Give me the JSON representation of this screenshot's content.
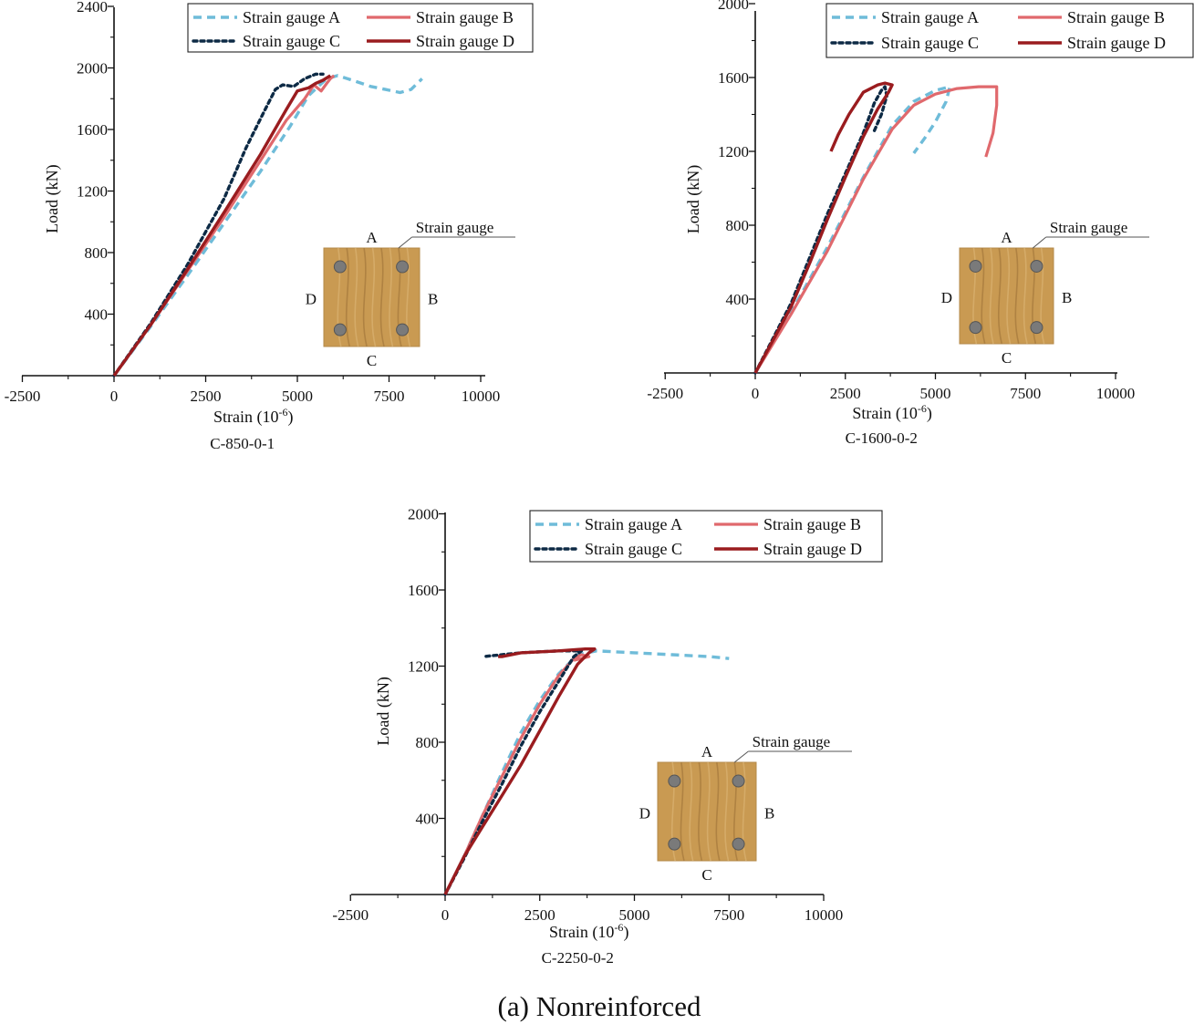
{
  "figure": {
    "caption": "(a) Nonreinforced",
    "colors": {
      "gauge_a": "#6fbcd9",
      "gauge_b": "#e0696d",
      "gauge_c": "#0d2a45",
      "gauge_d": "#9a1c1f",
      "specimen": "#c99a52",
      "bar": "#7a7a7a"
    },
    "inset": {
      "callout": "Strain gauge",
      "face_a": "A",
      "face_b": "B",
      "face_c": "C",
      "face_d": "D"
    }
  },
  "chart_data": [
    {
      "type": "line",
      "title": "C-850-0-1",
      "xlabel": "Strain (10",
      "xlabel_sup": "-6",
      "xlabel_end": ")",
      "ylabel": "Load (kN)",
      "xlim": [
        -2500,
        10000
      ],
      "ylim": [
        0,
        2400
      ],
      "xticks": [
        "-2500",
        "0",
        "2500",
        "5000",
        "7500",
        "10000"
      ],
      "xtick_values": [
        -2500,
        0,
        2500,
        5000,
        7500,
        10000
      ],
      "yticks": [
        "400",
        "800",
        "1200",
        "1600",
        "2000",
        "2400"
      ],
      "ytick_values": [
        400,
        800,
        1200,
        1600,
        2000,
        2400
      ],
      "series": [
        {
          "name": "Strain gauge A",
          "key": "gauge_a",
          "style": "dash",
          "points": [
            [
              0,
              0
            ],
            [
              1000,
              320
            ],
            [
              2000,
              650
            ],
            [
              3000,
              990
            ],
            [
              4000,
              1330
            ],
            [
              4800,
              1620
            ],
            [
              5300,
              1820
            ],
            [
              5800,
              1930
            ],
            [
              6100,
              1950
            ],
            [
              6500,
              1920
            ],
            [
              7000,
              1880
            ],
            [
              7400,
              1860
            ],
            [
              7800,
              1840
            ],
            [
              8100,
              1860
            ],
            [
              8400,
              1930
            ]
          ]
        },
        {
          "name": "Strain gauge B",
          "key": "gauge_b",
          "style": "solid",
          "points": [
            [
              0,
              0
            ],
            [
              1000,
              330
            ],
            [
              2000,
              680
            ],
            [
              3000,
              1030
            ],
            [
              4000,
              1400
            ],
            [
              4700,
              1660
            ],
            [
              5200,
              1800
            ],
            [
              5450,
              1890
            ],
            [
              5650,
              1850
            ],
            [
              5800,
              1900
            ],
            [
              5900,
              1930
            ],
            [
              6000,
              1950
            ]
          ]
        },
        {
          "name": "Strain gauge C",
          "key": "gauge_c",
          "style": "dot",
          "points": [
            [
              0,
              0
            ],
            [
              1000,
              340
            ],
            [
              2000,
              720
            ],
            [
              3000,
              1150
            ],
            [
              3600,
              1480
            ],
            [
              4100,
              1720
            ],
            [
              4400,
              1860
            ],
            [
              4600,
              1890
            ],
            [
              4900,
              1880
            ],
            [
              5200,
              1930
            ],
            [
              5500,
              1960
            ],
            [
              5700,
              1960
            ]
          ]
        },
        {
          "name": "Strain gauge D",
          "key": "gauge_d",
          "style": "solid",
          "points": [
            [
              0,
              0
            ],
            [
              1000,
              330
            ],
            [
              2000,
              690
            ],
            [
              3000,
              1060
            ],
            [
              4000,
              1440
            ],
            [
              4700,
              1730
            ],
            [
              5000,
              1850
            ],
            [
              5300,
              1870
            ],
            [
              5500,
              1900
            ],
            [
              5700,
              1920
            ],
            [
              5900,
              1950
            ]
          ]
        }
      ]
    },
    {
      "type": "line",
      "title": "C-1600-0-2",
      "xlabel": "Strain (10",
      "xlabel_sup": "-6",
      "xlabel_end": ")",
      "ylabel": "Load (kN)",
      "xlim": [
        -2500,
        10000
      ],
      "ylim": [
        0,
        2000
      ],
      "xticks": [
        "-2500",
        "0",
        "2500",
        "5000",
        "7500",
        "10000"
      ],
      "xtick_values": [
        -2500,
        0,
        2500,
        5000,
        7500,
        10000
      ],
      "yticks": [
        "400",
        "800",
        "1200",
        "1600",
        "2000"
      ],
      "ytick_values": [
        400,
        800,
        1200,
        1600,
        2000
      ],
      "series": [
        {
          "name": "Strain gauge A",
          "key": "gauge_a",
          "style": "dash",
          "points": [
            [
              0,
              0
            ],
            [
              1000,
              330
            ],
            [
              2000,
              680
            ],
            [
              3000,
              1060
            ],
            [
              3800,
              1340
            ],
            [
              4400,
              1470
            ],
            [
              5000,
              1530
            ],
            [
              5400,
              1550
            ],
            [
              5300,
              1470
            ],
            [
              5000,
              1360
            ],
            [
              4700,
              1270
            ],
            [
              4400,
              1190
            ]
          ]
        },
        {
          "name": "Strain gauge B",
          "key": "gauge_b",
          "style": "solid",
          "points": [
            [
              0,
              0
            ],
            [
              1000,
              320
            ],
            [
              2000,
              660
            ],
            [
              3000,
              1050
            ],
            [
              3800,
              1320
            ],
            [
              4400,
              1450
            ],
            [
              5000,
              1510
            ],
            [
              5600,
              1540
            ],
            [
              6200,
              1550
            ],
            [
              6700,
              1550
            ],
            [
              6700,
              1450
            ],
            [
              6600,
              1300
            ],
            [
              6400,
              1170
            ]
          ]
        },
        {
          "name": "Strain gauge C",
          "key": "gauge_c",
          "style": "dot",
          "points": [
            [
              0,
              0
            ],
            [
              500,
              190
            ],
            [
              1000,
              380
            ],
            [
              1500,
              620
            ],
            [
              2000,
              860
            ],
            [
              2500,
              1080
            ],
            [
              3000,
              1300
            ],
            [
              3300,
              1460
            ],
            [
              3500,
              1530
            ],
            [
              3600,
              1550
            ],
            [
              3650,
              1500
            ],
            [
              3500,
              1400
            ],
            [
              3300,
              1310
            ]
          ]
        },
        {
          "name": "Strain gauge D",
          "key": "gauge_d",
          "style": "solid",
          "points": [
            [
              0,
              0
            ],
            [
              500,
              180
            ],
            [
              1000,
              360
            ],
            [
              1500,
              590
            ],
            [
              2000,
              830
            ],
            [
              2500,
              1060
            ],
            [
              3000,
              1280
            ],
            [
              3400,
              1430
            ],
            [
              3700,
              1520
            ],
            [
              3800,
              1560
            ],
            [
              3600,
              1570
            ],
            [
              3400,
              1560
            ],
            [
              3000,
              1520
            ],
            [
              2600,
              1400
            ],
            [
              2300,
              1290
            ],
            [
              2100,
              1200
            ]
          ]
        }
      ]
    },
    {
      "type": "line",
      "title": "C-2250-0-2",
      "xlabel": "Strain (10",
      "xlabel_sup": "-6",
      "xlabel_end": ")",
      "ylabel": "Load (kN)",
      "xlim": [
        -2500,
        10000
      ],
      "ylim": [
        0,
        2000
      ],
      "xticks": [
        "-2500",
        "0",
        "2500",
        "5000",
        "7500",
        "10000"
      ],
      "xtick_values": [
        -2500,
        0,
        2500,
        5000,
        7500,
        10000
      ],
      "yticks": [
        "400",
        "800",
        "1200",
        "1600",
        "2000"
      ],
      "ytick_values": [
        400,
        800,
        1200,
        1600,
        2000
      ],
      "series": [
        {
          "name": "Strain gauge A",
          "key": "gauge_a",
          "style": "dash",
          "points": [
            [
              0,
              0
            ],
            [
              500,
              200
            ],
            [
              1000,
              420
            ],
            [
              1500,
              640
            ],
            [
              2000,
              850
            ],
            [
              2500,
              1020
            ],
            [
              3000,
              1160
            ],
            [
              3500,
              1260
            ],
            [
              4000,
              1280
            ],
            [
              5000,
              1270
            ],
            [
              6000,
              1260
            ],
            [
              7000,
              1250
            ],
            [
              7500,
              1240
            ]
          ]
        },
        {
          "name": "Strain gauge B",
          "key": "gauge_b",
          "style": "solid",
          "points": [
            [
              0,
              0
            ],
            [
              500,
              200
            ],
            [
              1000,
              420
            ],
            [
              1500,
              620
            ],
            [
              2000,
              820
            ],
            [
              2500,
              1000
            ],
            [
              3000,
              1150
            ],
            [
              3400,
              1240
            ],
            [
              3600,
              1260
            ],
            [
              3800,
              1250
            ],
            [
              3600,
              1240
            ],
            [
              3400,
              1230
            ]
          ]
        },
        {
          "name": "Strain gauge C",
          "key": "gauge_c",
          "style": "dot",
          "points": [
            [
              0,
              0
            ],
            [
              500,
              190
            ],
            [
              1000,
              390
            ],
            [
              1500,
              580
            ],
            [
              2000,
              780
            ],
            [
              2500,
              960
            ],
            [
              3000,
              1120
            ],
            [
              3400,
              1250
            ],
            [
              3600,
              1280
            ],
            [
              3000,
              1280
            ],
            [
              2000,
              1270
            ],
            [
              1000,
              1250
            ]
          ]
        },
        {
          "name": "Strain gauge D",
          "key": "gauge_d",
          "style": "solid",
          "points": [
            [
              0,
              0
            ],
            [
              500,
              200
            ],
            [
              1000,
              360
            ],
            [
              1500,
              520
            ],
            [
              2000,
              680
            ],
            [
              2500,
              860
            ],
            [
              3000,
              1040
            ],
            [
              3500,
              1210
            ],
            [
              3800,
              1270
            ],
            [
              3950,
              1290
            ],
            [
              3700,
              1290
            ],
            [
              3000,
              1280
            ],
            [
              2000,
              1270
            ],
            [
              1500,
              1250
            ],
            [
              1400,
              1250
            ]
          ]
        }
      ]
    }
  ]
}
